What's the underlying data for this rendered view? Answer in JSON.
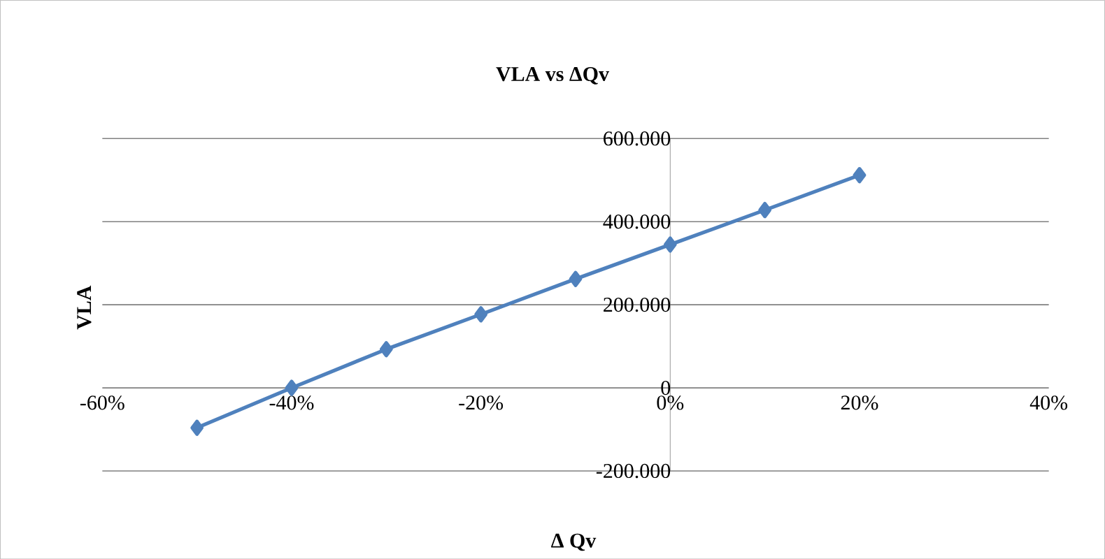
{
  "chart_data": {
    "type": "line",
    "title": "VLA vs ΔQv",
    "xlabel": "Δ Qv",
    "ylabel": "VLA",
    "x": [
      -50,
      -40,
      -30,
      -20,
      -10,
      0,
      10,
      20
    ],
    "series": [
      {
        "color": "#4f81bd",
        "values": [
          -96000,
          0,
          93000,
          177000,
          262000,
          345000,
          428000,
          512000
        ]
      }
    ],
    "xlim": [
      -60,
      40
    ],
    "ylim": [
      -200000,
      600000
    ],
    "xticks": [
      {
        "value": -60,
        "label": "-60%"
      },
      {
        "value": -40,
        "label": "-40%"
      },
      {
        "value": -20,
        "label": "-20%"
      },
      {
        "value": 0,
        "label": "0%"
      },
      {
        "value": 20,
        "label": "20%"
      },
      {
        "value": 40,
        "label": "40%"
      }
    ],
    "yticks": [
      {
        "value": -200000,
        "label": "-200.000"
      },
      {
        "value": 0,
        "label": "0"
      },
      {
        "value": 200000,
        "label": "200.000"
      },
      {
        "value": 400000,
        "label": "400.000"
      },
      {
        "value": 600000,
        "label": "600.000"
      }
    ],
    "grid": "y",
    "marker": "diamond",
    "line_style": "solid"
  }
}
